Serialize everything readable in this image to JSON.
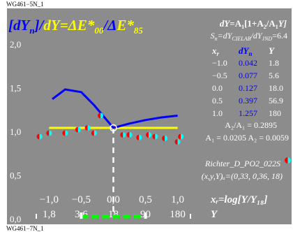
{
  "header": {
    "code_top": "WG461−5N_1",
    "code_bottom": "WG461−7N_1"
  },
  "title": {
    "p1": "[",
    "p2": "dY",
    "p3": "n",
    "p4": "]/",
    "p5": "dY",
    "p6": "=Δ",
    "p7": "E*",
    "p8": "00",
    "p9": "/Δ",
    "p10": "E*",
    "p11": "85"
  },
  "formula": {
    "l1a": "dY",
    "l1b": "=A",
    "l1c": "1",
    "l1d": "[1+A",
    "l1e": "2",
    "l1f": "/A",
    "l1g": "1",
    "l1h": "Y]",
    "l2a": "S",
    "l2b": "n",
    "l2c": "=dY",
    "l2d": "CIELAB",
    "l2e": "/dY",
    "l2f": "JND",
    "l2g": "=6.4"
  },
  "value_table": {
    "headers": {
      "x": "x",
      "x_sub": "r",
      "dy": "dY",
      "dy_sub": "n",
      "y": "Y"
    },
    "rows": [
      {
        "x": "−1.0",
        "dy": "0.042",
        "y": "1.8"
      },
      {
        "x": "−0.5",
        "dy": "0.077",
        "y": "5.6"
      },
      {
        "x": "0.0",
        "dy": "0.127",
        "y": "18.0"
      },
      {
        "x": "0.5",
        "dy": "0.397",
        "y": "56.9"
      },
      {
        "x": "1.0",
        "dy": "1.257",
        "y": "180"
      }
    ]
  },
  "ratios": {
    "a_ratio": "A₂/A₁ = 0.2895",
    "a_values": "A₁ = 0.0205  A₂ = 0.0059"
  },
  "notes": {
    "richter": "Richter_D_PO2_022S",
    "xyY": "(x,y,Y)ᵤ=(0,33, 0,36, 18)"
  },
  "axis": {
    "x_title": "xᵣ=log[Y/Y₁₈]",
    "x_unit_label": "Y",
    "x_ticks": [
      "−1,0",
      "−0,5",
      "0,0",
      "0,5",
      "1,0"
    ],
    "x_ticks_y": [
      "1,8",
      "3,6",
      "18",
      "90",
      "180"
    ],
    "y_ticks": [
      "2,0",
      "1,5",
      "1,0",
      "0,5",
      "0,0"
    ]
  },
  "colors": {
    "background": "#8c8c8c",
    "blue_curve": "#0000ff",
    "yellow_line": "#ffff00",
    "dash_line": "#ffffff",
    "green_segment": "#00ff00",
    "marker_red": "#ff0000",
    "marker_cyan": "#00ffff",
    "title_blue": "#0000ff",
    "title_yellow": "#ffff00",
    "table_blue": "#0000ff"
  },
  "chart_data": {
    "type": "line",
    "xlim": [
      -1.2,
      1.2
    ],
    "ylim": [
      0.0,
      2.0
    ],
    "series": [
      {
        "x": [
          -0.95,
          -0.75,
          -0.5,
          -0.3,
          0.0,
          0.25,
          0.5,
          0.75,
          1.0
        ],
        "values": [
          1.37,
          1.48,
          1.45,
          1.3,
          1.04,
          1.09,
          1.13,
          1.16,
          1.18
        ]
      },
      {
        "x": [
          -1.0,
          1.0
        ],
        "values": [
          1.04,
          1.04
        ]
      }
    ],
    "scatter_points": {
      "x": [
        -1.15,
        -1.0,
        -0.75,
        -0.55,
        -0.4,
        -0.3,
        -0.2,
        0.15,
        0.25,
        0.4,
        0.55,
        0.65,
        0.8,
        1.0,
        1.05
      ],
      "y": [
        0.94,
        0.98,
        0.98,
        1.02,
        1.04,
        0.98,
        1.18,
        0.96,
        0.96,
        0.93,
        0.96,
        0.94,
        0.92,
        0.88,
        0.94
      ]
    },
    "reference_x": 0.0,
    "reference_y": 1.04,
    "highlight_x_range": [
      -0.5,
      0.5
    ]
  }
}
